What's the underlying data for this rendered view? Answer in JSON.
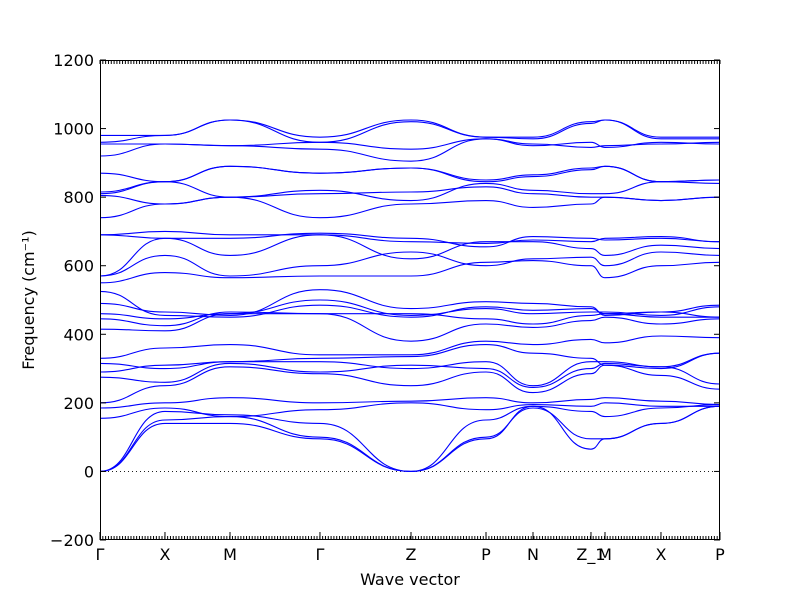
{
  "chart_data": {
    "type": "line",
    "title": "",
    "xlabel": "Wave vector",
    "ylabel": "Frequency (cm⁻¹)",
    "ylim": [
      -200,
      1200
    ],
    "yticks": [
      -200,
      0,
      200,
      400,
      600,
      800,
      1000,
      1200
    ],
    "xlim": [
      0,
      1
    ],
    "kpoints": [
      {
        "label": "Γ",
        "x": 0.0
      },
      {
        "label": "X",
        "x": 0.1048
      },
      {
        "label": "M",
        "x": 0.2097
      },
      {
        "label": "Γ",
        "x": 0.3548
      },
      {
        "label": "Z",
        "x": 0.5016
      },
      {
        "label": "P",
        "x": 0.6226
      },
      {
        "label": "N",
        "x": 0.6984
      },
      {
        "label": "Z_1",
        "x": 0.7919
      },
      {
        "label": "M",
        "x": 0.8145
      },
      {
        "label": "X",
        "x": 0.9048
      },
      {
        "label": "P",
        "x": 1.0
      }
    ],
    "zero_line": true,
    "series_color": "#0000ff",
    "bands": [
      [
        0,
        140,
        140,
        95,
        0,
        95,
        190,
        65,
        95,
        140,
        190
      ],
      [
        0,
        150,
        160,
        100,
        0,
        100,
        185,
        95,
        95,
        140,
        190
      ],
      [
        0,
        175,
        165,
        140,
        0,
        150,
        190,
        175,
        160,
        185,
        195
      ],
      [
        155,
        185,
        160,
        180,
        200,
        180,
        195,
        190,
        200,
        190,
        190
      ],
      [
        185,
        200,
        215,
        200,
        205,
        215,
        200,
        210,
        215,
        205,
        195
      ],
      [
        200,
        250,
        305,
        285,
        250,
        290,
        230,
        285,
        310,
        280,
        240
      ],
      [
        275,
        260,
        315,
        290,
        310,
        300,
        245,
        300,
        315,
        305,
        255
      ],
      [
        290,
        310,
        320,
        320,
        300,
        320,
        250,
        320,
        320,
        305,
        345
      ],
      [
        315,
        300,
        320,
        330,
        335,
        370,
        345,
        330,
        310,
        300,
        345
      ],
      [
        330,
        360,
        370,
        340,
        340,
        380,
        370,
        385,
        375,
        395,
        390
      ],
      [
        415,
        410,
        460,
        460,
        380,
        430,
        420,
        440,
        450,
        430,
        445
      ],
      [
        445,
        425,
        465,
        460,
        460,
        445,
        430,
        455,
        460,
        450,
        450
      ],
      [
        460,
        445,
        460,
        500,
        455,
        475,
        460,
        465,
        465,
        455,
        480
      ],
      [
        490,
        465,
        455,
        530,
        475,
        495,
        490,
        480,
        455,
        465,
        485
      ],
      [
        525,
        455,
        450,
        485,
        450,
        480,
        470,
        475,
        460,
        465,
        450
      ],
      [
        550,
        580,
        565,
        570,
        570,
        610,
        615,
        600,
        565,
        600,
        610
      ],
      [
        570,
        630,
        570,
        600,
        640,
        600,
        620,
        625,
        600,
        640,
        630
      ],
      [
        570,
        680,
        630,
        690,
        620,
        670,
        670,
        650,
        630,
        660,
        650
      ],
      [
        690,
        680,
        680,
        695,
        680,
        655,
        685,
        680,
        675,
        680,
        670
      ],
      [
        690,
        700,
        690,
        690,
        670,
        665,
        675,
        670,
        680,
        685,
        670
      ],
      [
        740,
        780,
        800,
        740,
        780,
        790,
        770,
        780,
        800,
        790,
        800
      ],
      [
        805,
        780,
        800,
        810,
        815,
        830,
        810,
        800,
        800,
        790,
        800
      ],
      [
        810,
        845,
        800,
        820,
        790,
        840,
        820,
        810,
        810,
        845,
        840
      ],
      [
        815,
        845,
        890,
        870,
        885,
        845,
        860,
        880,
        890,
        845,
        850
      ],
      [
        870,
        845,
        890,
        870,
        885,
        850,
        865,
        885,
        890,
        845,
        850
      ],
      [
        920,
        955,
        950,
        940,
        905,
        970,
        950,
        960,
        945,
        960,
        955
      ],
      [
        955,
        955,
        950,
        960,
        940,
        970,
        955,
        945,
        950,
        955,
        960
      ],
      [
        960,
        980,
        1025,
        960,
        1020,
        975,
        970,
        1015,
        1025,
        970,
        970
      ],
      [
        980,
        980,
        1025,
        975,
        1025,
        975,
        975,
        1020,
        1025,
        975,
        975
      ]
    ]
  }
}
